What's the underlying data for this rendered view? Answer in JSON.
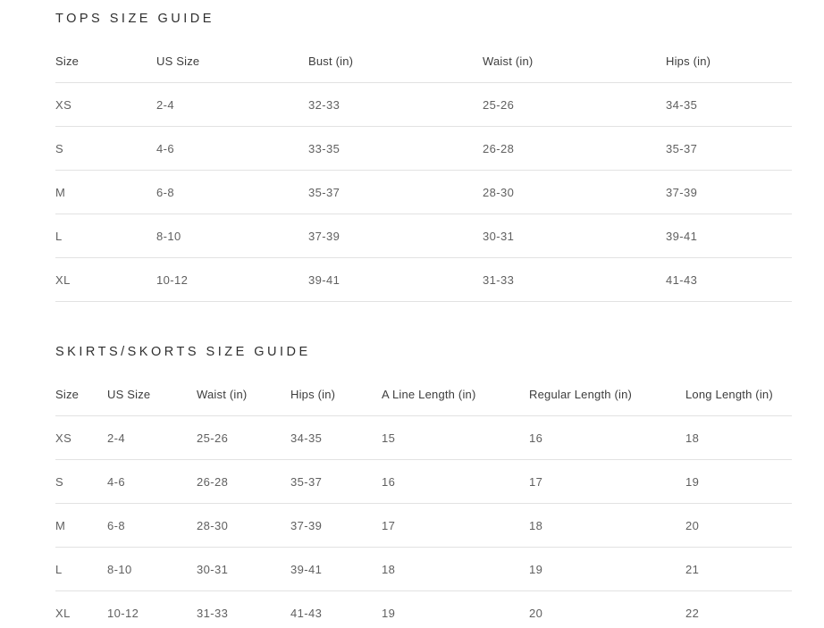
{
  "colors": {
    "background": "#ffffff",
    "title_text": "#2f2f2f",
    "header_text": "#3d3d3d",
    "cell_text": "#606060",
    "divider": "#e2e2e2"
  },
  "tops_guide": {
    "title": "TOPS SIZE GUIDE",
    "headers": [
      "Size",
      "US Size",
      "Bust (in)",
      "Waist (in)",
      "Hips (in)"
    ],
    "rows": [
      [
        "XS",
        "2-4",
        "32-33",
        "25-26",
        "34-35"
      ],
      [
        "S",
        "4-6",
        "33-35",
        "26-28",
        "35-37"
      ],
      [
        "M",
        "6-8",
        "35-37",
        "28-30",
        "37-39"
      ],
      [
        "L",
        "8-10",
        "37-39",
        "30-31",
        "39-41"
      ],
      [
        "XL",
        "10-12",
        "39-41",
        "31-33",
        "41-43"
      ]
    ]
  },
  "skirts_guide": {
    "title": "SKIRTS/SKORTS SIZE GUIDE",
    "headers": [
      "Size",
      "US Size",
      "Waist (in)",
      "Hips (in)",
      "A Line Length (in)",
      "Regular Length (in)",
      "Long Length (in)"
    ],
    "rows": [
      [
        "XS",
        "2-4",
        "25-26",
        "34-35",
        "15",
        "16",
        "18"
      ],
      [
        "S",
        "4-6",
        "26-28",
        "35-37",
        "16",
        "17",
        "19"
      ],
      [
        "M",
        "6-8",
        "28-30",
        "37-39",
        "17",
        "18",
        "20"
      ],
      [
        "L",
        "8-10",
        "30-31",
        "39-41",
        "18",
        "19",
        "21"
      ],
      [
        "XL",
        "10-12",
        "31-33",
        "41-43",
        "19",
        "20",
        "22"
      ]
    ]
  }
}
